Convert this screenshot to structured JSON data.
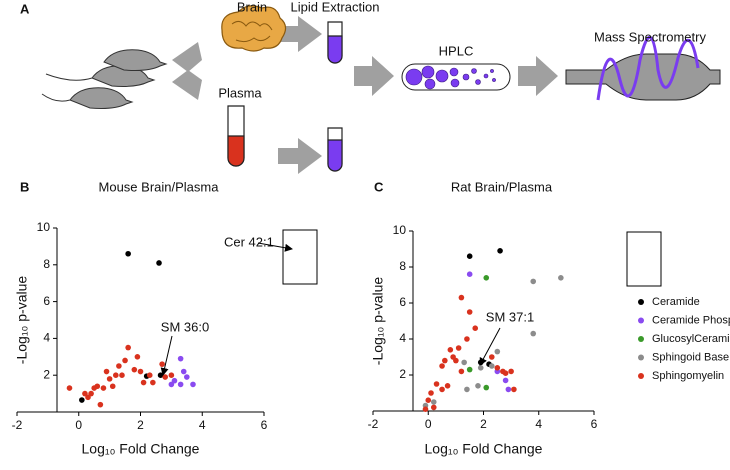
{
  "diagram": {
    "panel_label": "A",
    "labels": [
      "Brain",
      "Lipid Extraction",
      "Plasma",
      "HPLC",
      "Mass Spectrometry"
    ]
  },
  "chart_data": [
    {
      "type": "scatter",
      "panel_label": "B",
      "title": "Mouse Brain/Plasma",
      "xlabel": "Log₁₀ Fold Change",
      "ylabel": "-Log₁₀ p-value",
      "xlim": [
        -2,
        6
      ],
      "ylim": [
        0,
        10
      ],
      "xticks": [
        -2,
        0,
        2,
        4,
        6
      ],
      "yticks": [
        2,
        4,
        6,
        8,
        10
      ],
      "legend": false,
      "annotations": [
        "SM 36:0",
        "Cer 42:1"
      ],
      "series": [
        {
          "name": "Ceramide",
          "color": "#000000",
          "x": [
            1.6,
            2.6,
            0.1,
            2.2,
            2.65
          ],
          "values": [
            8.6,
            8.1,
            0.65,
            1.95,
            2.0
          ]
        },
        {
          "name": "Ceramide Phosphate",
          "color": "#8a4bf0",
          "x": [
            3.3,
            3.4,
            3.1,
            3.3,
            3.7,
            3.5,
            3.0
          ],
          "values": [
            2.9,
            2.2,
            1.7,
            1.5,
            1.5,
            1.9,
            1.5
          ]
        },
        {
          "name": "Sphingomyelin",
          "color": "#d9321e",
          "x": [
            -0.3,
            0.3,
            0.5,
            0.6,
            0.4,
            0.2,
            0.8,
            0.9,
            1.0,
            1.1,
            1.3,
            1.4,
            1.5,
            1.6,
            1.8,
            1.9,
            2.0,
            2.1,
            2.3,
            2.4,
            2.7,
            2.8,
            3.0,
            0.7,
            1.2
          ],
          "values": [
            1.3,
            0.8,
            1.3,
            1.4,
            1.0,
            1.0,
            1.3,
            2.2,
            1.8,
            1.4,
            2.5,
            2.0,
            2.8,
            3.5,
            2.3,
            3.0,
            2.2,
            1.6,
            2.0,
            1.6,
            2.6,
            1.9,
            2.0,
            0.4,
            2.0
          ]
        }
      ]
    },
    {
      "type": "scatter",
      "panel_label": "C",
      "title": "Rat Brain/Plasma",
      "xlabel": "Log₁₀ Fold Change",
      "ylabel": "-Log₁₀ p-value",
      "xlim": [
        -2,
        6
      ],
      "ylim": [
        0,
        10
      ],
      "xticks": [
        -2,
        0,
        2,
        4,
        6
      ],
      "yticks": [
        2,
        4,
        6,
        8,
        10
      ],
      "legend": "right",
      "annotations": [
        "SM 37:1"
      ],
      "series": [
        {
          "name": "Ceramide",
          "color": "#000000",
          "x": [
            1.5,
            2.6,
            2.2,
            1.9
          ],
          "values": [
            8.6,
            8.9,
            2.6,
            2.7
          ]
        },
        {
          "name": "Ceramide Phosphate",
          "color": "#8a4bf0",
          "x": [
            1.5,
            2.8,
            2.9,
            2.5
          ],
          "values": [
            7.6,
            1.7,
            1.2,
            2.2
          ]
        },
        {
          "name": "GlucosylCeramide",
          "color": "#3a9a2a",
          "x": [
            2.1,
            2.1,
            1.5
          ],
          "values": [
            7.4,
            1.3,
            2.3
          ]
        },
        {
          "name": "Sphingoid Base",
          "color": "#8c8c8c",
          "x": [
            3.8,
            4.8,
            3.8,
            2.5,
            2.3,
            1.9,
            1.4,
            1.8,
            -0.1,
            0.2,
            1.3
          ],
          "values": [
            7.2,
            7.4,
            4.3,
            3.3,
            2.5,
            2.4,
            1.2,
            1.4,
            0.3,
            0.5,
            2.7
          ]
        },
        {
          "name": "Sphingomyelin",
          "color": "#d9321e",
          "x": [
            1.2,
            1.5,
            1.7,
            1.4,
            1.1,
            0.8,
            0.9,
            0.6,
            0.5,
            1.0,
            0.3,
            0.5,
            0.1,
            0.0,
            0.7,
            2.3,
            2.5,
            2.7,
            3.0,
            3.1,
            2.8,
            0.2,
            -0.1,
            1.2
          ],
          "values": [
            6.3,
            5.5,
            4.6,
            4.0,
            3.5,
            3.4,
            3.0,
            2.8,
            2.5,
            2.8,
            1.5,
            1.2,
            1.0,
            0.6,
            1.4,
            3.0,
            2.4,
            2.2,
            2.2,
            1.2,
            2.1,
            0.2,
            0.1,
            2.2
          ]
        }
      ]
    }
  ]
}
